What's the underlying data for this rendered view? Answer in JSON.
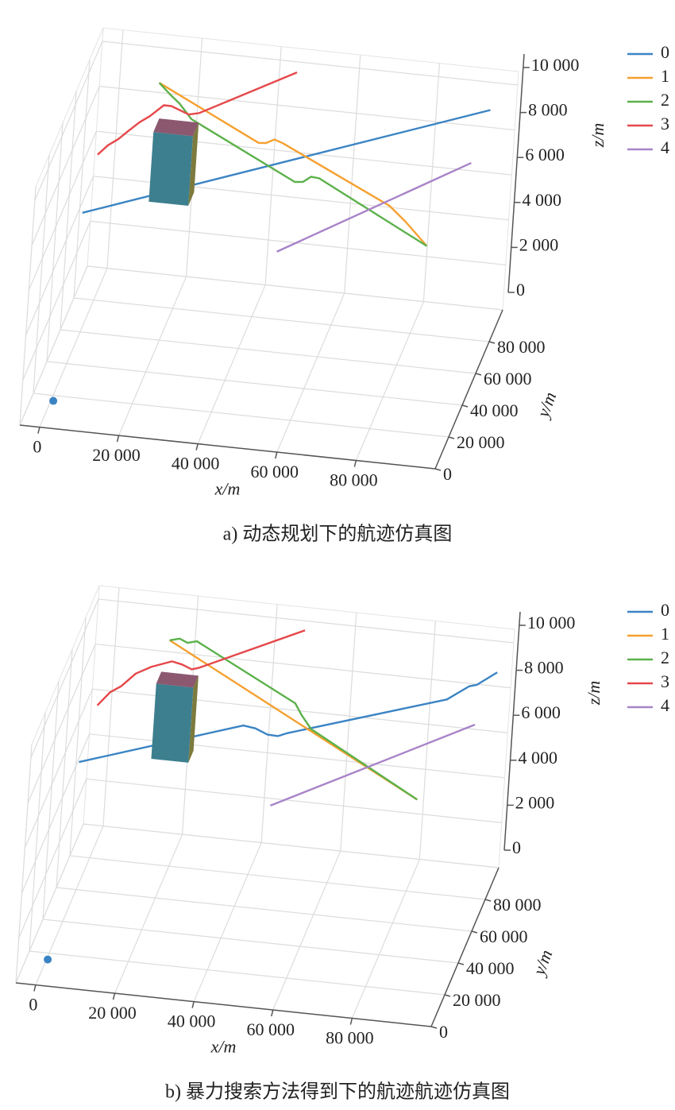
{
  "chart_data": [
    {
      "type": "line3d",
      "title": "a) 动态规划下的航迹仿真图",
      "xlabel": "x/m",
      "ylabel": "y/m",
      "zlabel": "z/m",
      "xlim": [
        -5000,
        100000
      ],
      "ylim": [
        0,
        100000
      ],
      "zlim": [
        0,
        10600
      ],
      "xticks": [
        0,
        {
          "value": 20000,
          "label": "20 000"
        },
        {
          "value": 40000,
          "label": "40 000"
        },
        {
          "value": 60000,
          "label": "60 000"
        },
        {
          "value": 80000,
          "label": "80 000"
        }
      ],
      "yticks": [
        0,
        {
          "value": 20000,
          "label": "20 000"
        },
        {
          "value": 40000,
          "label": "40 000"
        },
        {
          "value": 60000,
          "label": "60 000"
        },
        {
          "value": 80000,
          "label": "80 000"
        }
      ],
      "zticks": [
        0,
        {
          "value": 2000,
          "label": "2 000"
        },
        {
          "value": 4000,
          "label": "4 000"
        },
        {
          "value": 6000,
          "label": "6 000"
        },
        {
          "value": 8000,
          "label": "8 000"
        },
        {
          "value": 10000,
          "label": "10 000"
        }
      ],
      "grid": true,
      "legend": "upper right",
      "series": [
        {
          "name": "0",
          "color": "#3b84c4",
          "x": [
            0,
            95000
          ],
          "y": [
            50000,
            90000
          ],
          "z": [
            6000,
            9500
          ]
        },
        {
          "name": "1",
          "color": "#f5a030",
          "x": [
            10700,
            38500,
            40500,
            42700,
            45000,
            74900,
            79400,
            85600
          ],
          "y": [
            95000,
            82000,
            81000,
            80000,
            79000,
            65000,
            63000,
            60000
          ],
          "z": [
            8800,
            7560,
            7660,
            7930,
            7880,
            6630,
            6160,
            5400
          ]
        },
        {
          "name": "2",
          "color": "#5cb14a",
          "x": [
            10700,
            14200,
            16500,
            20000,
            48900,
            51100,
            53200,
            55400,
            85600
          ],
          "y": [
            95000,
            93400,
            92400,
            90800,
            77400,
            76300,
            75300,
            74200,
            60000
          ],
          "z": [
            8800,
            8400,
            8170,
            7650,
            6340,
            6460,
            6800,
            6850,
            5400
          ]
        },
        {
          "name": "3",
          "color": "#e5484a",
          "x": [
            0,
            2400,
            4900,
            7200,
            10000,
            12500,
            15800,
            17700,
            22200,
            24800,
            44400
          ],
          "y": [
            70000,
            70000,
            70000,
            70000,
            70000,
            70000,
            70000,
            70000,
            70000,
            70000,
            100000
          ],
          "z": [
            7170,
            7630,
            7950,
            8340,
            8800,
            9120,
            9660,
            9660,
            9370,
            9480,
            9530
          ]
        },
        {
          "name": "4",
          "color": "#a884c8",
          "x": [
            50900,
            92500
          ],
          "y": [
            40000,
            80000
          ],
          "z": [
            5920,
            7810
          ]
        }
      ],
      "start_point": {
        "x": 600,
        "y": 16700,
        "z": 0,
        "color": "#3b84c4"
      },
      "obstacle": {
        "x": [
          12200,
          22200
        ],
        "y": [
          80000,
          88500
        ],
        "z": [
          4600,
          7700
        ],
        "colors": [
          "#3d7f8e",
          "#8b5870",
          "#7c7a3d"
        ]
      }
    },
    {
      "type": "line3d",
      "title": "b) 暴力搜索方法得到下的航迹航迹仿真图",
      "xlabel": "x/m",
      "ylabel": "y/m",
      "zlabel": "z/m",
      "xlim": [
        -5000,
        100000
      ],
      "ylim": [
        0,
        100000
      ],
      "zlim": [
        0,
        10600
      ],
      "xticks": [
        0,
        {
          "value": 20000,
          "label": "20 000"
        },
        {
          "value": 40000,
          "label": "40 000"
        },
        {
          "value": 60000,
          "label": "60 000"
        },
        {
          "value": 80000,
          "label": "80 000"
        }
      ],
      "yticks": [
        0,
        {
          "value": 20000,
          "label": "20 000"
        },
        {
          "value": 40000,
          "label": "40 000"
        },
        {
          "value": 60000,
          "label": "60 000"
        },
        {
          "value": 80000,
          "label": "80 000"
        }
      ],
      "zticks": [
        0,
        {
          "value": 2000,
          "label": "2 000"
        },
        {
          "value": 4000,
          "label": "4 000"
        },
        {
          "value": 6000,
          "label": "6 000"
        },
        {
          "value": 8000,
          "label": "8 000"
        },
        {
          "value": 10000,
          "label": "10 000"
        }
      ],
      "grid": true,
      "legend": "upper right",
      "series": [
        {
          "name": "0",
          "color": "#3b84c4",
          "x": [
            0,
            38400,
            41300,
            44300,
            46800,
            49000,
            86300,
            91400,
            93200,
            97800
          ],
          "y": [
            50000,
            65800,
            67000,
            68100,
            69100,
            70000,
            85100,
            87400,
            88100,
            90000
          ],
          "z": [
            6380,
            7600,
            7440,
            7140,
            7050,
            7160,
            8280,
            8800,
            8850,
            9350
          ]
        },
        {
          "name": "1",
          "color": "#f5a030",
          "x": [
            14300,
            84100
          ],
          "y": [
            95000,
            60000
          ],
          "z": [
            8880,
            5560
          ]
        },
        {
          "name": "2",
          "color": "#5cb14a",
          "x": [
            14300,
            17000,
            19200,
            21700,
            49400,
            51300,
            54100,
            84100
          ],
          "y": [
            95000,
            93700,
            92500,
            91200,
            77400,
            76500,
            75200,
            60000
          ],
          "z": [
            8880,
            9090,
            9030,
            9240,
            7970,
            7550,
            7070,
            5560
          ]
        },
        {
          "name": "3",
          "color": "#e5484a",
          "x": [
            800,
            3800,
            6500,
            9900,
            13800,
            18800,
            21400,
            23900,
            25800,
            47400
          ],
          "y": [
            70000,
            70000,
            70000,
            70000,
            70000,
            70000,
            70000,
            70000,
            70000,
            100000
          ],
          "z": [
            7500,
            8140,
            8460,
            9080,
            9460,
            9790,
            9700,
            9530,
            9640,
            9580
          ]
        },
        {
          "name": "4",
          "color": "#a884c8",
          "x": [
            50200,
            94500
          ],
          "y": [
            40000,
            80000
          ],
          "z": [
            6080,
            7670
          ]
        }
      ],
      "start_point": {
        "x": 300,
        "y": 16100,
        "z": 0,
        "color": "#3b84c4"
      },
      "obstacle": {
        "x": [
          13800,
          23200
        ],
        "y": [
          80000,
          87500
        ],
        "z": [
          4660,
          8000
        ],
        "colors": [
          "#3d7f8e",
          "#8b5870",
          "#7c7a3d"
        ]
      }
    }
  ]
}
